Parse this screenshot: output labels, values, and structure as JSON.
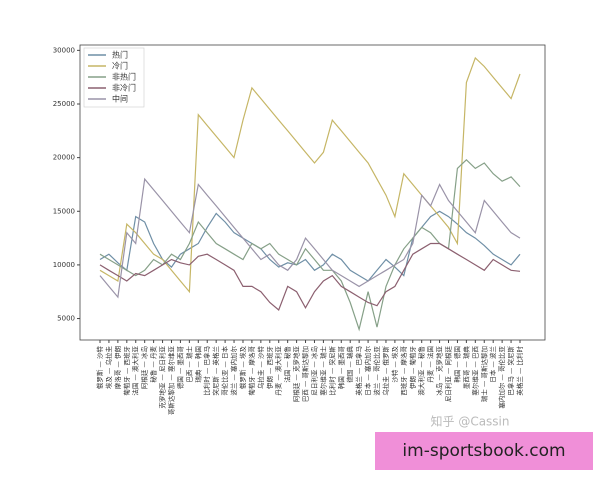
{
  "chart_data": {
    "type": "line",
    "categories": [
      "俄罗斯 — 沙特",
      "埃及 — 乌拉圭",
      "摩洛哥 — 伊朗",
      "葡萄牙 — 西班牙",
      "法国 — 澳大利亚",
      "阿根廷 — 冰岛",
      "秘鲁 — 丹麦",
      "克罗地亚 — 尼日利亚",
      "哥斯达黎加 — 塞尔维亚",
      "德国 — 墨西哥",
      "巴西 — 瑞士",
      "瑞典 — 韩国",
      "比利时 — 巴拿马",
      "突尼斯 — 英格兰",
      "哥伦比亚 — 日本",
      "波兰 — 塞内加尔",
      "俄罗斯 — 埃及",
      "葡萄牙 — 摩洛哥",
      "乌拉圭 — 沙特",
      "伊朗 — 西班牙",
      "丹麦 — 澳大利亚",
      "法国 — 秘鲁",
      "阿根廷 — 克罗地亚",
      "巴西 — 哥斯达黎加",
      "尼日利亚 — 冰岛",
      "塞尔维亚 — 瑞士",
      "比利时 — 突尼斯",
      "韩国 — 墨西哥",
      "德国 — 瑞典",
      "英格兰 — 巴拿马",
      "日本 — 塞内加尔",
      "波兰 — 哥伦比亚",
      "乌拉圭 — 俄罗斯",
      "沙特 — 埃及",
      "西班牙 — 摩洛哥",
      "伊朗 — 葡萄牙",
      "澳大利亚 — 秘鲁",
      "丹麦 — 法国",
      "冰岛 — 克罗地亚",
      "尼日利亚 — 阿根廷",
      "韩国 — 德国",
      "墨西哥 — 瑞典",
      "塞尔维亚 — 巴西",
      "瑞士 — 哥斯达黎加",
      "日本 — 波兰",
      "塞内加尔 — 哥伦比亚",
      "巴拿马 — 突尼斯",
      "英格兰 — 比利时"
    ],
    "series": [
      {
        "name": "热门",
        "color": "#6f8fa6",
        "values": [
          10500,
          11000,
          10200,
          9500,
          14500,
          14000,
          12000,
          10500,
          9800,
          11000,
          11500,
          12000,
          13500,
          14800,
          14000,
          13000,
          12500,
          12000,
          11500,
          10500,
          9800,
          10200,
          10000,
          10500,
          9500,
          10000,
          11000,
          10500,
          9500,
          9000,
          8500,
          9500,
          10500,
          9800,
          9000,
          12500,
          13500,
          14500,
          15000,
          14500,
          13800,
          13000,
          12500,
          11800,
          11000,
          10500,
          10000,
          11000
        ]
      },
      {
        "name": "冷门",
        "color": "#c6b666",
        "values": [
          9500,
          9000,
          8500,
          13800,
          13000,
          12000,
          11000,
          10500,
          9500,
          8500,
          7500,
          24000,
          23000,
          22000,
          21000,
          20000,
          23500,
          26500,
          25500,
          24500,
          23500,
          22500,
          21500,
          20500,
          19500,
          20500,
          23500,
          22500,
          21500,
          20500,
          19500,
          18000,
          16500,
          14500,
          18500,
          17500,
          16500,
          15500,
          14500,
          13500,
          12000,
          27000,
          29300,
          28500,
          27500,
          26500,
          25500,
          27800
        ]
      },
      {
        "name": "非热门",
        "color": "#86a088",
        "values": [
          11000,
          10500,
          10000,
          9500,
          9000,
          9500,
          10500,
          10000,
          11000,
          10500,
          12000,
          14000,
          13000,
          12000,
          11500,
          11000,
          10500,
          12000,
          11500,
          12000,
          11000,
          10500,
          10000,
          11500,
          10500,
          9500,
          9500,
          8500,
          6500,
          4000,
          7500,
          4200,
          8000,
          10000,
          11500,
          12500,
          13500,
          13000,
          12000,
          11500,
          19000,
          19800,
          19000,
          19500,
          18500,
          17800,
          18200,
          17300
        ]
      },
      {
        "name": "非冷门",
        "color": "#8c6070",
        "values": [
          10000,
          9500,
          9000,
          8500,
          9200,
          9000,
          9500,
          10000,
          10500,
          10200,
          10000,
          10800,
          11000,
          10500,
          10000,
          9500,
          8000,
          8000,
          7500,
          6500,
          5800,
          8000,
          7500,
          6000,
          7500,
          8500,
          9000,
          8000,
          7500,
          7000,
          6500,
          6200,
          7500,
          8000,
          9500,
          11000,
          11500,
          12000,
          12000,
          11500,
          11000,
          10500,
          10000,
          9500,
          10500,
          10000,
          9500,
          9400
        ]
      },
      {
        "name": "中间",
        "color": "#9a93a8",
        "values": [
          9000,
          8000,
          7000,
          13000,
          12000,
          18000,
          17000,
          16000,
          15000,
          14000,
          13000,
          17500,
          16500,
          15500,
          14500,
          13500,
          12500,
          11500,
          10500,
          11000,
          10000,
          9500,
          10500,
          12500,
          11500,
          10500,
          9500,
          9000,
          8500,
          8000,
          8500,
          9000,
          9500,
          10000,
          10500,
          12000,
          16500,
          15500,
          17500,
          16000,
          15000,
          14000,
          13000,
          16000,
          15000,
          14000,
          13000,
          12500
        ]
      }
    ],
    "ylim": [
      3000,
      30500
    ],
    "yticks": [
      5000,
      10000,
      15000,
      20000,
      25000,
      30000
    ],
    "legend": "upper-left",
    "watermark": "知乎 @Cassin",
    "banner": "im-sportsbook.com"
  }
}
